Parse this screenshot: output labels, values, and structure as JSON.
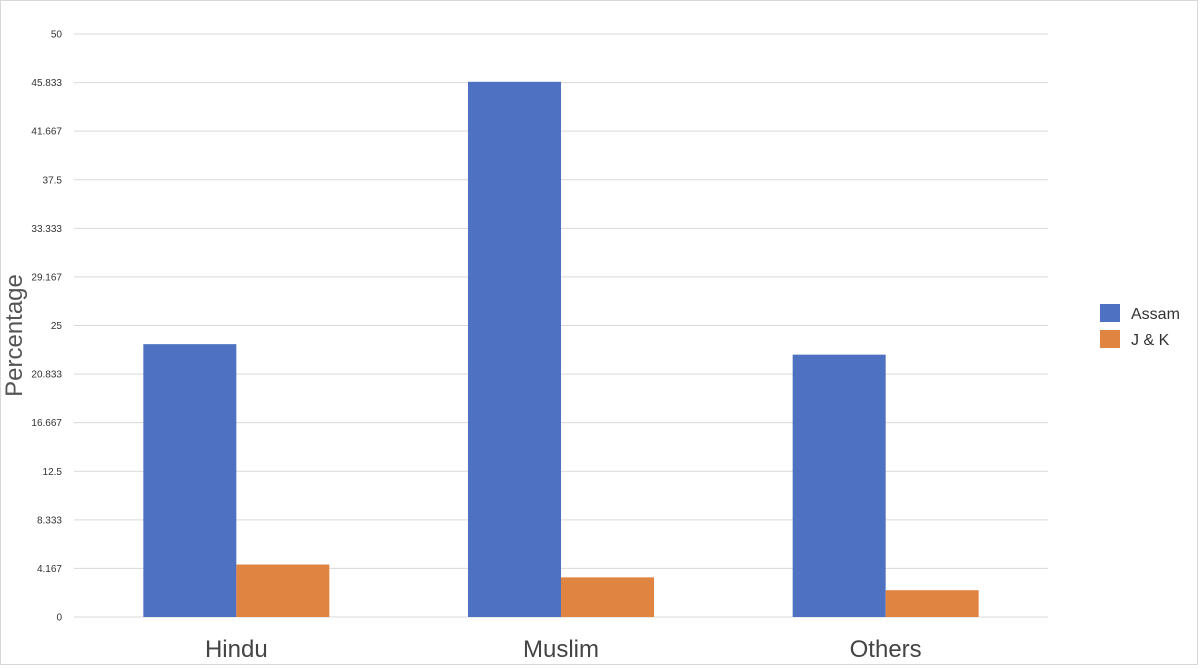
{
  "chart_data": {
    "type": "bar",
    "title": "",
    "xlabel": "",
    "ylabel": "Percentage",
    "categories": [
      "Hindu",
      "Muslim",
      "Others"
    ],
    "series": [
      {
        "name": "Assam",
        "values": [
          23.4,
          45.9,
          22.5
        ],
        "color": "#4e72c1"
      },
      {
        "name": "J & K",
        "values": [
          4.5,
          3.4,
          2.3
        ],
        "color": "#e08442"
      }
    ],
    "ylim": [
      0,
      50
    ],
    "yticks": [
      "0",
      "4.167",
      "8.333",
      "12.5",
      "16.667",
      "20.833",
      "25",
      "29.167",
      "33.333",
      "37.5",
      "41.667",
      "45.833",
      "50"
    ],
    "grid": true,
    "legend_position": "right"
  }
}
